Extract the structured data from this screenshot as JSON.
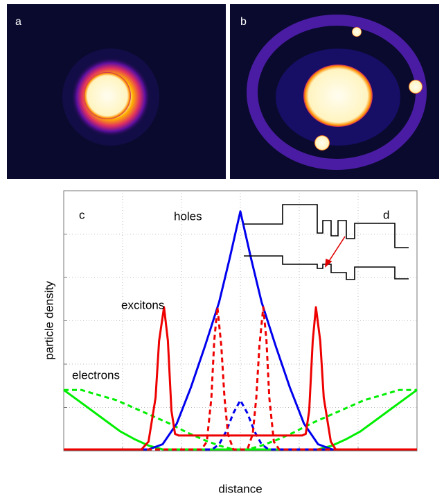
{
  "panel_labels": [
    "a",
    "b",
    "c",
    "d"
  ],
  "chart_data": {
    "type": "line",
    "xlabel": "distance",
    "ylabel": "particle density",
    "xlim": [
      0,
      100
    ],
    "ylim": [
      0,
      100
    ],
    "grid": true,
    "annotations": [
      "holes",
      "excitons",
      "electrons"
    ],
    "series": [
      {
        "color": "#00ee00",
        "dash": false,
        "x": [
          0,
          4,
          8,
          12,
          16,
          20,
          24,
          28,
          72,
          76,
          80,
          84,
          88,
          92,
          96,
          100
        ],
        "values": [
          23,
          19,
          15,
          11,
          7,
          4,
          1.5,
          0,
          0,
          1.5,
          4,
          7,
          11,
          15,
          19,
          23
        ]
      },
      {
        "color": "#00ee00",
        "dash": true,
        "x": [
          0,
          5,
          10,
          15,
          20,
          25,
          30,
          35,
          40,
          44,
          48,
          52,
          56,
          60,
          65,
          70,
          75,
          80,
          85,
          90,
          95,
          100
        ],
        "values": [
          23,
          23,
          21,
          19,
          16,
          13,
          10,
          6.5,
          3.5,
          1.5,
          0,
          0,
          1.5,
          3.5,
          6.5,
          10,
          13,
          16,
          19,
          21,
          23,
          23
        ]
      },
      {
        "color": "#0000ee",
        "dash": false,
        "x": [
          0,
          24,
          28,
          32,
          36,
          40,
          44,
          47,
          50,
          53,
          56,
          60,
          64,
          68,
          72,
          76,
          100
        ],
        "values": [
          0,
          0,
          2,
          10,
          24,
          40,
          57,
          74,
          92,
          74,
          57,
          40,
          24,
          10,
          2,
          0,
          0
        ]
      },
      {
        "color": "#0000ee",
        "dash": true,
        "x": [
          0,
          42,
          44,
          46,
          48,
          50,
          52,
          54,
          56,
          58,
          100
        ],
        "values": [
          0,
          0,
          2,
          7,
          14,
          19,
          14,
          7,
          2,
          0,
          0
        ]
      },
      {
        "color": "#ee0000",
        "dash": false,
        "x": [
          0,
          22,
          24,
          26,
          27,
          28.4,
          29.5,
          30.5,
          31.5,
          32.5,
          67.5,
          68.5,
          69.5,
          70.5,
          71.4,
          72.6,
          73.6,
          75.6,
          77,
          100
        ],
        "values": [
          0,
          0,
          3,
          20,
          42,
          55,
          42,
          15,
          6,
          5.4,
          5.4,
          6,
          15,
          42,
          55,
          42,
          20,
          3,
          0,
          0
        ]
      },
      {
        "color": "#ee0000",
        "dash": true,
        "x": [
          0,
          39,
          40.5,
          41.8,
          42.6,
          43.5,
          44.6,
          45.5,
          46.5,
          48,
          52,
          53.5,
          54.5,
          55.4,
          56.5,
          57.4,
          58.2,
          59.5,
          61,
          100
        ],
        "values": [
          0,
          0,
          3,
          20,
          42,
          55,
          40,
          20,
          6,
          0,
          0,
          6,
          20,
          40,
          55,
          42,
          20,
          3,
          0,
          0
        ]
      }
    ]
  }
}
